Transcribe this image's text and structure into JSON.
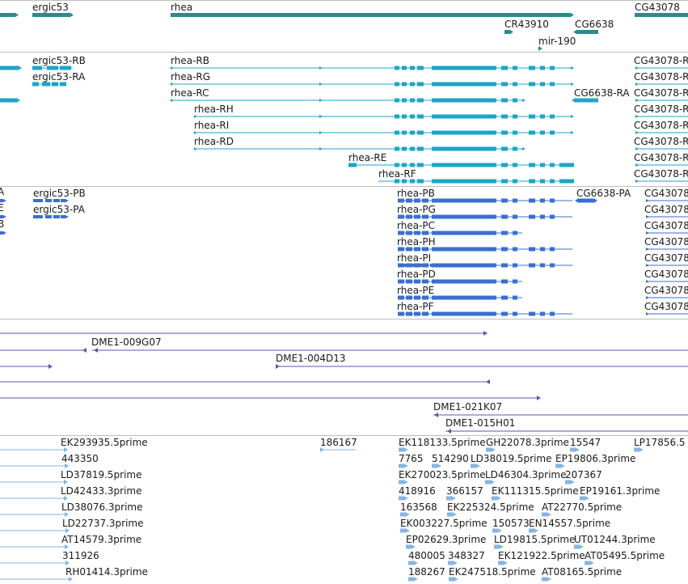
{
  "colors": {
    "gene": "#2a8c8c",
    "transcript": "#1ea5c7",
    "protein": "#3a6fd0",
    "clone": "#6f4fa8",
    "est": "#86b6e0",
    "separator": "#bdbdbd",
    "text": "#1a1a1a"
  },
  "tracks": {
    "genes": [
      {
        "label": "ergic53",
        "icon": "arrow-right"
      },
      {
        "label": "rhea",
        "icon": "arrow-right"
      },
      {
        "label": "CR43910",
        "icon": "arrow-right"
      },
      {
        "label": "CG6638",
        "icon": "arrow-left"
      },
      {
        "label": "mir-190",
        "icon": "arrow-right"
      },
      {
        "label": "CG43078",
        "icon": "arrow-right"
      }
    ],
    "transcripts": [
      {
        "label": "ergic53-RB"
      },
      {
        "label": "ergic53-RA"
      },
      {
        "label": "rhea-RB"
      },
      {
        "label": "rhea-RG"
      },
      {
        "label": "rhea-RC"
      },
      {
        "label": "rhea-RH"
      },
      {
        "label": "rhea-RI"
      },
      {
        "label": "rhea-RD"
      },
      {
        "label": "rhea-RE"
      },
      {
        "label": "rhea-RF"
      },
      {
        "label": "CG6638-RA"
      },
      {
        "label": "CG43078-R"
      },
      {
        "label": "CG43078-R"
      },
      {
        "label": "CG43078-R"
      },
      {
        "label": "CG43078-R"
      },
      {
        "label": "CG43078-R"
      },
      {
        "label": "CG43078-R"
      },
      {
        "label": "CG43078-R"
      },
      {
        "label": "CG43078-R"
      }
    ],
    "proteins": [
      {
        "label": "A"
      },
      {
        "label": "E"
      },
      {
        "label": "B"
      },
      {
        "label": "ergic53-PB"
      },
      {
        "label": "ergic53-PA"
      },
      {
        "label": "rhea-PB"
      },
      {
        "label": "rhea-PG"
      },
      {
        "label": "rhea-PC"
      },
      {
        "label": "rhea-PH"
      },
      {
        "label": "rhea-PI"
      },
      {
        "label": "rhea-PD"
      },
      {
        "label": "rhea-PE"
      },
      {
        "label": "rhea-PF"
      },
      {
        "label": "CG6638-PA"
      },
      {
        "label": "CG43078"
      },
      {
        "label": "CG43078"
      },
      {
        "label": "CG43078"
      },
      {
        "label": "CG43078"
      },
      {
        "label": "CG43078"
      },
      {
        "label": "CG43078"
      },
      {
        "label": "CG43078"
      },
      {
        "label": "CG43078"
      }
    ],
    "clones": [
      {
        "label": ""
      },
      {
        "label": "DME1-009G07"
      },
      {
        "label": ""
      },
      {
        "label": "DME1-004D13"
      },
      {
        "label": ""
      },
      {
        "label": ""
      },
      {
        "label": "DME1-021K07"
      },
      {
        "label": "DME1-015H01"
      }
    ],
    "ests": [
      {
        "label": "EK293935.5prime"
      },
      {
        "label": "443350"
      },
      {
        "label": "LD37819.5prime"
      },
      {
        "label": "LD42433.3prime"
      },
      {
        "label": "LD38076.3prime"
      },
      {
        "label": "LD22737.3prime"
      },
      {
        "label": "AT14579.3prime"
      },
      {
        "label": "311926"
      },
      {
        "label": "RH01414.3prime"
      },
      {
        "label": "186167"
      },
      {
        "label": "EK118133.5prime"
      },
      {
        "label": "GH22078.3prime"
      },
      {
        "label": "15547"
      },
      {
        "label": "LP17856.5"
      },
      {
        "label": "7765"
      },
      {
        "label": "514290"
      },
      {
        "label": "LD38019.5prime"
      },
      {
        "label": "EP19806.3prime"
      },
      {
        "label": "EK270023.5prime"
      },
      {
        "label": "LD46304.3prime"
      },
      {
        "label": "207367"
      },
      {
        "label": "418916"
      },
      {
        "label": "366157"
      },
      {
        "label": "EK111315.5prime"
      },
      {
        "label": "EP19161.3prime"
      },
      {
        "label": "163568"
      },
      {
        "label": "EK225324.5prime"
      },
      {
        "label": "AT22770.5prime"
      },
      {
        "label": "EK003227.5prime"
      },
      {
        "label": "150573"
      },
      {
        "label": "EN14557.5prime"
      },
      {
        "label": "EP02629.3prime"
      },
      {
        "label": "LD19815.5prime"
      },
      {
        "label": "UT01244.3prime"
      },
      {
        "label": "480005"
      },
      {
        "label": "348327"
      },
      {
        "label": "EK121922.5prime"
      },
      {
        "label": "AT05495.5prime"
      },
      {
        "label": "188267"
      },
      {
        "label": "EK247518.5prime"
      },
      {
        "label": "AT08165.5prime"
      }
    ]
  }
}
